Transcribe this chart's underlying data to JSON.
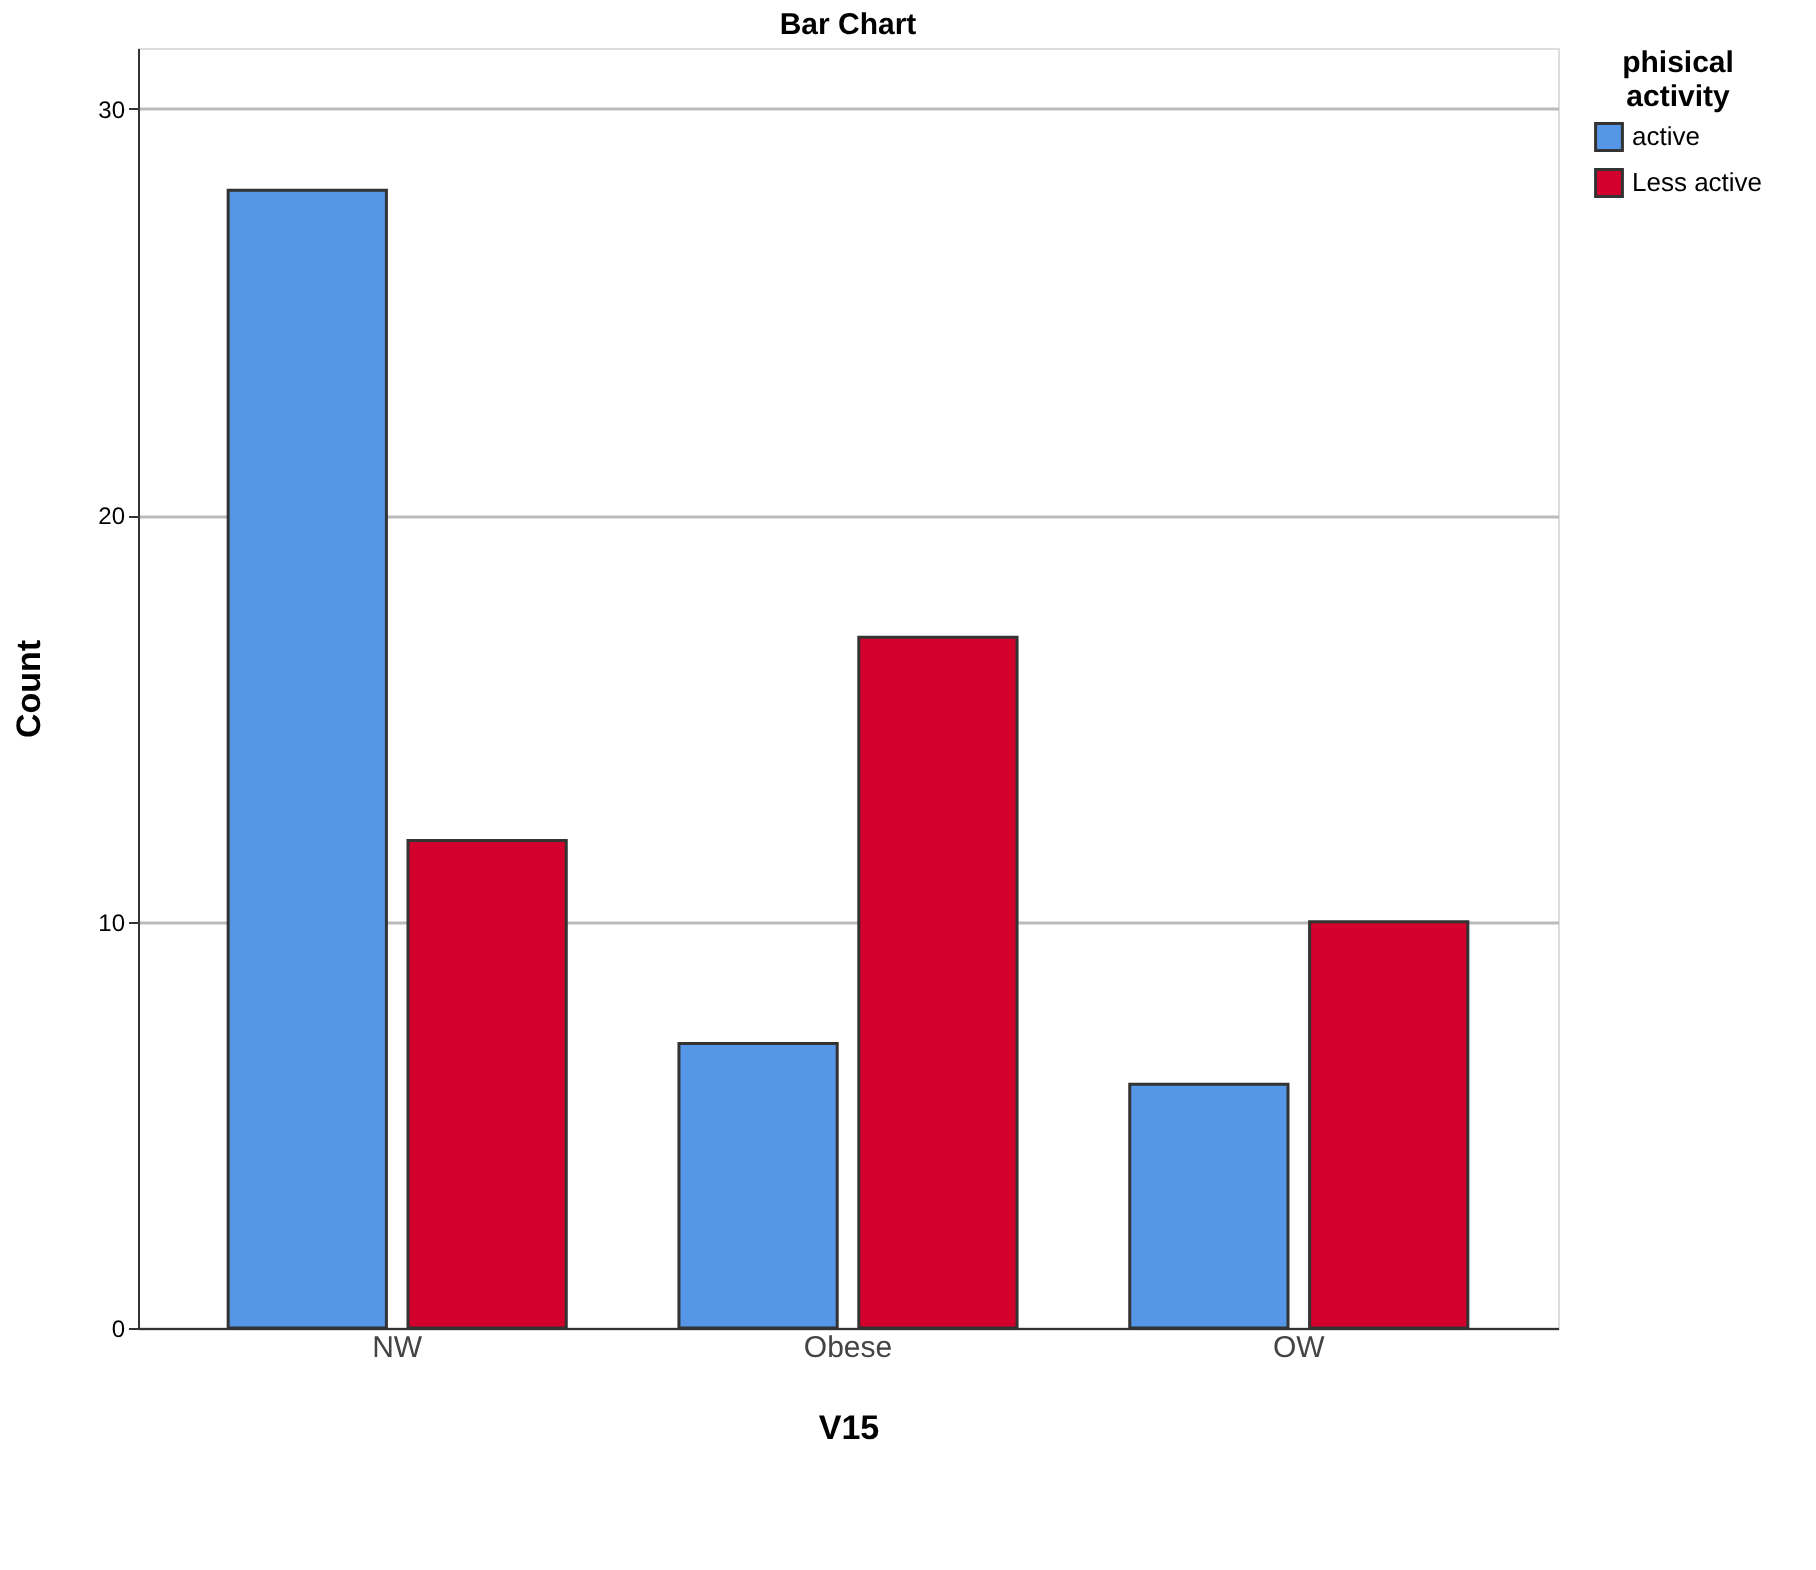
{
  "chart_data": {
    "type": "bar",
    "title": "Bar Chart",
    "xlabel": "V15",
    "ylabel": "Count",
    "legend_title": "phisical activity",
    "categories": [
      "NW",
      "Obese",
      "OW"
    ],
    "series": [
      {
        "name": "active",
        "color": "#5596e6",
        "values": [
          28,
          7,
          6
        ]
      },
      {
        "name": "Less active",
        "color": "#d3002d",
        "values": [
          12,
          17,
          10
        ]
      }
    ],
    "ylim": [
      0,
      31.5
    ],
    "yticks": [
      0,
      10,
      20,
      30
    ],
    "grid": "y",
    "legend": "top right"
  }
}
